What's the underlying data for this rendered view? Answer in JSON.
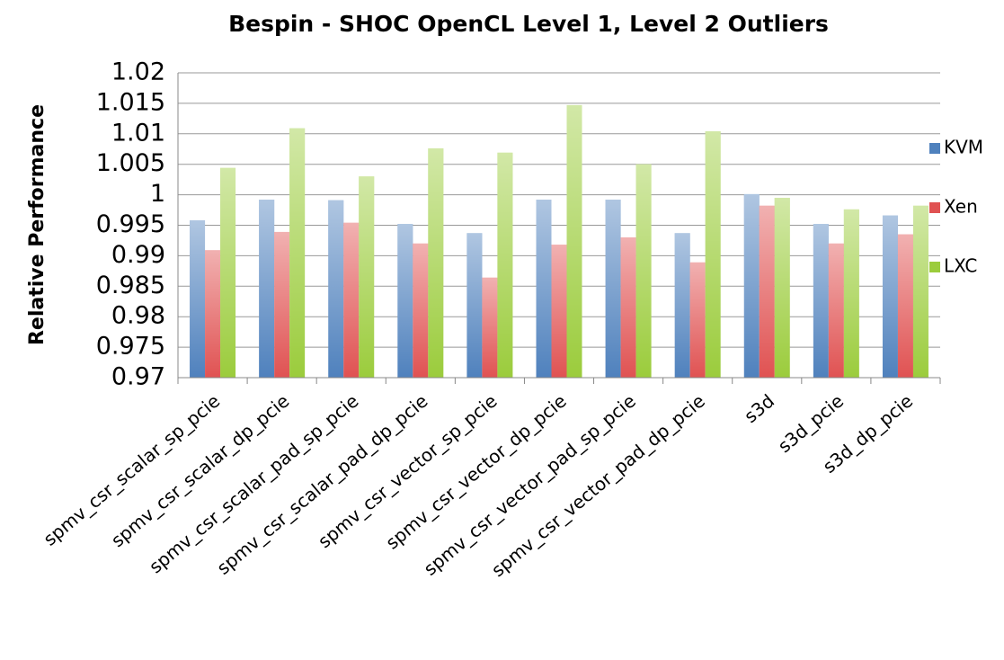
{
  "chart_data": {
    "type": "bar",
    "title": "Bespin - SHOC OpenCL Level 1, Level 2 Outliers",
    "y_label": "Relative Performance",
    "categories": [
      "spmv_csr_scalar_sp_pcie",
      "spmv_csr_scalar_dp_pcie",
      "spmv_csr_scalar_pad_sp_pcie",
      "spmv_csr_scalar_pad_dp_pcie",
      "spmv_csr_vector_sp_pcie",
      "spmv_csr_vector_dp_pcie",
      "spmv_csr_vector_pad_sp_pcie",
      "spmv_csr_vector_pad_dp_pcie",
      "s3d",
      "s3d_pcie",
      "s3d_dp_pcie"
    ],
    "series": [
      {
        "name": "KVM",
        "color": "#4f81bd",
        "values": [
          0.9958,
          0.9992,
          0.9991,
          0.9952,
          0.9937,
          0.9992,
          0.9992,
          0.9937,
          1.0001,
          0.9952,
          0.9966
        ]
      },
      {
        "name": "Xen",
        "color": "#e05252",
        "values": [
          0.9909,
          0.9939,
          0.9954,
          0.992,
          0.9864,
          0.9918,
          0.993,
          0.9889,
          0.9982,
          0.992,
          0.9935
        ]
      },
      {
        "name": "LXC",
        "color": "#9bcc3c",
        "values": [
          1.0044,
          1.0109,
          1.003,
          1.0076,
          1.0069,
          1.0147,
          1.005,
          1.0104,
          0.9995,
          0.9976,
          0.9982
        ]
      }
    ],
    "ylim": [
      0.97,
      1.02
    ],
    "yticks": [
      0.97,
      0.975,
      0.98,
      0.985,
      0.99,
      0.995,
      1,
      1.005,
      1.01,
      1.015,
      1.02
    ],
    "grid": true,
    "legend": "right"
  }
}
